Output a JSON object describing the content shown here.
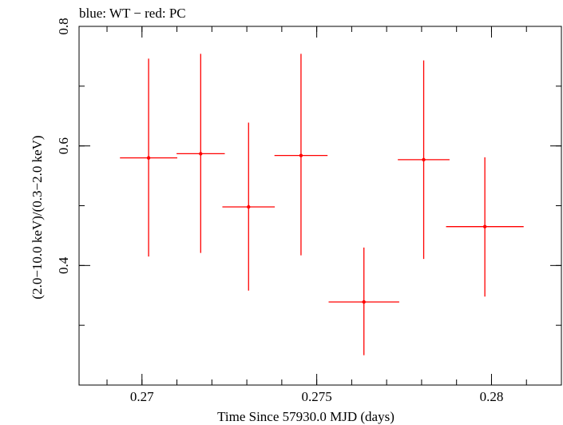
{
  "chart_data": {
    "type": "scatter",
    "title": "blue: WT − red: PC",
    "xlabel": "Time Since 57930.0 MJD (days)",
    "ylabel": "(2.0−10.0 keV)/(0.3−2.0 keV)",
    "xlim": [
      0.2682,
      0.282
    ],
    "ylim": [
      0.2,
      0.8
    ],
    "xticks": [
      {
        "value": 0.27,
        "label": "0.27"
      },
      {
        "value": 0.275,
        "label": "0.275"
      },
      {
        "value": 0.28,
        "label": "0.28"
      }
    ],
    "xminor_step": 0.001,
    "yticks": [
      {
        "value": 0.4,
        "label": "0.4"
      },
      {
        "value": 0.6,
        "label": "0.6"
      },
      {
        "value": 0.8,
        "label": "0.8"
      }
    ],
    "yminor_step": 0.1,
    "grid": false,
    "series": [
      {
        "color": "#ff0000",
        "points": [
          {
            "x": 0.27019,
            "xerr": 0.00082,
            "y": 0.58,
            "ylo": 0.415,
            "yhi": 0.746
          },
          {
            "x": 0.27168,
            "xerr": 0.00069,
            "y": 0.587,
            "ylo": 0.421,
            "yhi": 0.754
          },
          {
            "x": 0.27305,
            "xerr": 0.00075,
            "y": 0.498,
            "ylo": 0.358,
            "yhi": 0.639
          },
          {
            "x": 0.27455,
            "xerr": 0.00076,
            "y": 0.584,
            "ylo": 0.417,
            "yhi": 0.754
          },
          {
            "x": 0.27635,
            "xerr": 0.00101,
            "y": 0.339,
            "ylo": 0.25,
            "yhi": 0.43
          },
          {
            "x": 0.27806,
            "xerr": 0.00074,
            "y": 0.577,
            "ylo": 0.411,
            "yhi": 0.743
          },
          {
            "x": 0.27981,
            "xerr": 0.00111,
            "y": 0.465,
            "ylo": 0.348,
            "yhi": 0.581
          }
        ]
      }
    ]
  }
}
